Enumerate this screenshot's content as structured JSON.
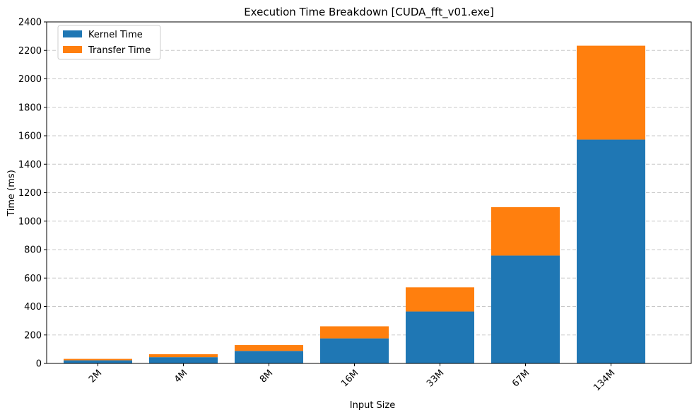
{
  "chart_data": {
    "type": "bar",
    "stacked": true,
    "title": "Execution Time Breakdown [CUDA_fft_v01.exe]",
    "xlabel": "Input Size",
    "ylabel": "Time (ms)",
    "ylim": [
      0,
      2400
    ],
    "yticks": [
      0,
      200,
      400,
      600,
      800,
      1000,
      1200,
      1400,
      1600,
      1800,
      2000,
      2200,
      2400
    ],
    "grid": "y-dashed",
    "legend_position": "top-left",
    "x_tick_rotation": 45,
    "categories": [
      "2M",
      "4M",
      "8M",
      "16M",
      "33M",
      "67M",
      "134M"
    ],
    "series": [
      {
        "name": "Kernel Time",
        "color": "#1f77b4",
        "values": [
          22,
          44,
          88,
          176,
          365,
          758,
          1573
        ]
      },
      {
        "name": "Transfer Time",
        "color": "#ff7f0e",
        "values": [
          10,
          21,
          41,
          85,
          170,
          340,
          660
        ]
      }
    ]
  }
}
